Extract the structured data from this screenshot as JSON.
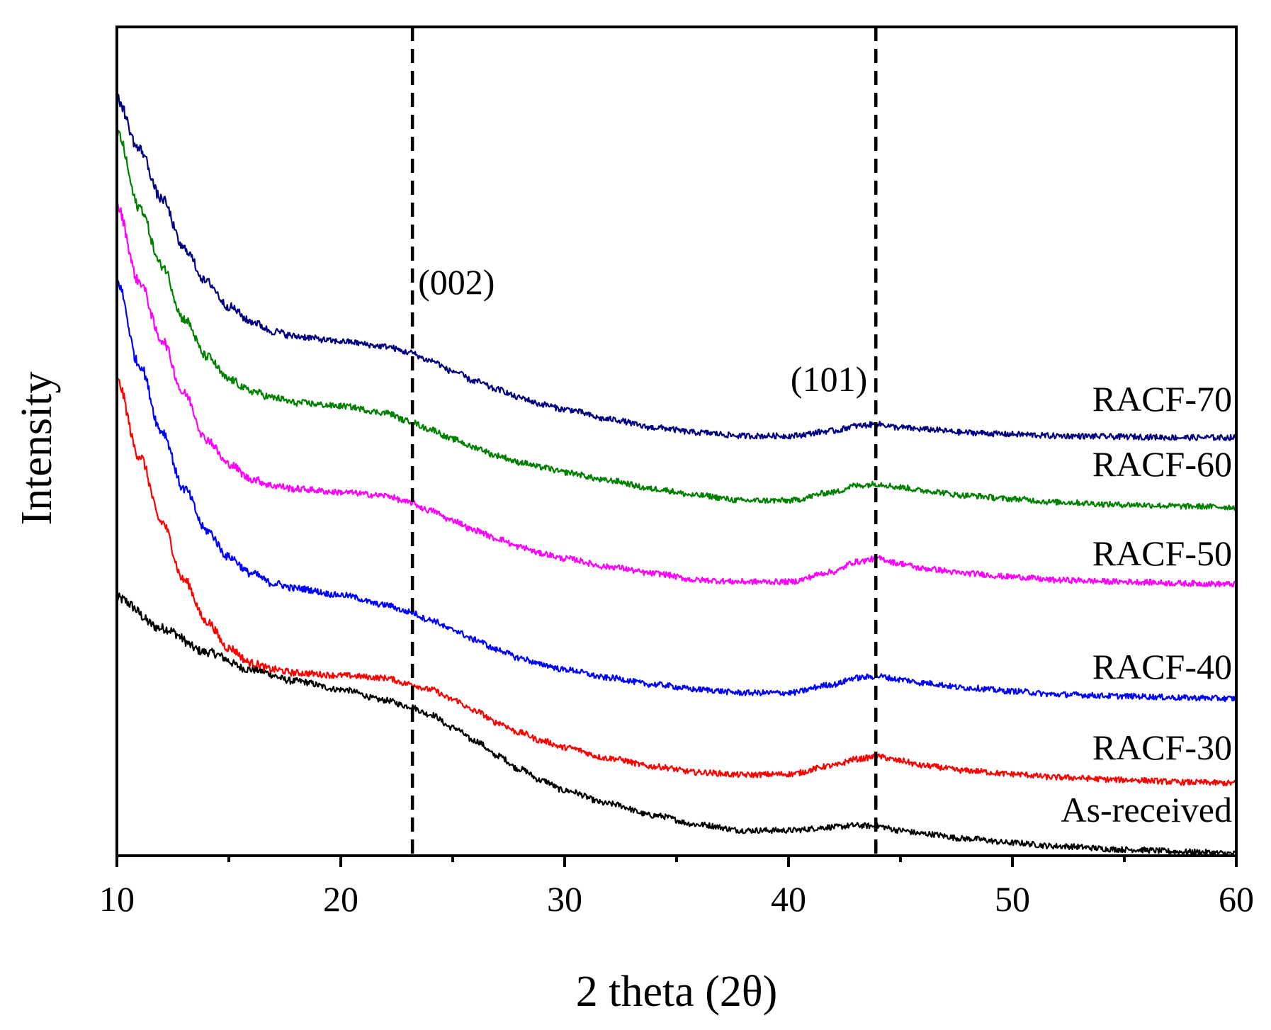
{
  "chart_data": {
    "type": "line",
    "title": "",
    "xlabel": "2 theta (2θ)",
    "ylabel": "Intensity",
    "xlim": [
      10,
      60
    ],
    "ylim": [
      0,
      10
    ],
    "x_ticks": [
      10,
      20,
      30,
      40,
      50,
      60
    ],
    "x_minor_step": 5,
    "y_ticks_shown": false,
    "grid": false,
    "legend": "inline labels at right end of each curve",
    "annotations": [
      {
        "text": "(002)",
        "x": 23.2,
        "line": "dashed vertical"
      },
      {
        "text": "(101)",
        "x": 43.9,
        "line": "dashed vertical"
      }
    ],
    "series": [
      {
        "name": "As-received",
        "color": "#000000",
        "x": [
          10,
          12,
          14,
          16,
          18,
          20,
          22,
          23,
          24,
          25,
          26,
          27,
          28,
          29,
          30,
          32,
          34,
          36,
          38,
          40,
          42,
          43,
          44,
          45,
          46,
          48,
          50,
          52,
          55,
          58,
          60
        ],
        "values": [
          3.08,
          2.72,
          2.43,
          2.22,
          2.08,
          1.98,
          1.85,
          1.78,
          1.68,
          1.52,
          1.36,
          1.18,
          1.02,
          0.88,
          0.76,
          0.6,
          0.46,
          0.35,
          0.28,
          0.28,
          0.32,
          0.34,
          0.33,
          0.28,
          0.24,
          0.18,
          0.13,
          0.09,
          0.05,
          0.02,
          0.0
        ]
      },
      {
        "name": "RACF-30",
        "color": "#ff0000",
        "x": [
          10,
          11,
          12,
          13,
          14,
          15,
          16,
          17,
          18,
          20,
          22,
          23,
          24,
          25,
          26,
          27,
          28,
          29,
          30,
          32,
          34,
          36,
          38,
          40,
          42,
          43,
          44,
          45,
          46,
          48,
          50,
          52,
          55,
          58,
          60
        ],
        "values": [
          5.7,
          4.8,
          4.0,
          3.3,
          2.8,
          2.48,
          2.3,
          2.22,
          2.18,
          2.15,
          2.12,
          2.05,
          1.98,
          1.86,
          1.72,
          1.58,
          1.46,
          1.36,
          1.28,
          1.15,
          1.05,
          0.98,
          0.95,
          0.96,
          1.06,
          1.14,
          1.17,
          1.12,
          1.06,
          1.0,
          0.96,
          0.92,
          0.89,
          0.86,
          0.85
        ]
      },
      {
        "name": "RACF-40",
        "color": "#0000ff",
        "x": [
          10,
          11,
          12,
          13,
          14,
          15,
          16,
          17,
          18,
          20,
          22,
          23,
          24,
          25,
          26,
          27,
          28,
          29,
          30,
          32,
          34,
          36,
          38,
          40,
          42,
          43,
          44,
          45,
          46,
          48,
          50,
          52,
          55,
          58,
          60
        ],
        "values": [
          6.9,
          5.9,
          5.1,
          4.4,
          3.9,
          3.58,
          3.38,
          3.26,
          3.2,
          3.12,
          3.0,
          2.92,
          2.82,
          2.7,
          2.58,
          2.46,
          2.36,
          2.28,
          2.22,
          2.12,
          2.04,
          1.98,
          1.94,
          1.94,
          2.04,
          2.12,
          2.14,
          2.1,
          2.06,
          2.0,
          1.96,
          1.92,
          1.9,
          1.88,
          1.87
        ]
      },
      {
        "name": "RACF-50",
        "color": "#ff00ff",
        "x": [
          10,
          11,
          12,
          13,
          14,
          15,
          16,
          17,
          18,
          20,
          22,
          23,
          24,
          25,
          26,
          27,
          28,
          29,
          30,
          32,
          34,
          36,
          38,
          40,
          42,
          43,
          44,
          45,
          46,
          48,
          50,
          52,
          55,
          58,
          60
        ],
        "values": [
          7.8,
          6.9,
          6.2,
          5.55,
          5.0,
          4.7,
          4.52,
          4.44,
          4.4,
          4.36,
          4.32,
          4.24,
          4.14,
          4.02,
          3.9,
          3.8,
          3.7,
          3.62,
          3.56,
          3.46,
          3.38,
          3.3,
          3.28,
          3.28,
          3.4,
          3.52,
          3.56,
          3.5,
          3.44,
          3.38,
          3.34,
          3.3,
          3.28,
          3.26,
          3.25
        ]
      },
      {
        "name": "RACF-60",
        "color": "#008000",
        "x": [
          10,
          11,
          12,
          13,
          14,
          15,
          16,
          17,
          18,
          20,
          22,
          23,
          24,
          25,
          26,
          27,
          28,
          29,
          30,
          32,
          34,
          36,
          38,
          40,
          42,
          43,
          44,
          45,
          46,
          48,
          50,
          52,
          55,
          58,
          60
        ],
        "values": [
          8.7,
          7.8,
          7.1,
          6.45,
          6.0,
          5.72,
          5.58,
          5.5,
          5.44,
          5.4,
          5.32,
          5.22,
          5.12,
          5.0,
          4.9,
          4.8,
          4.72,
          4.66,
          4.6,
          4.5,
          4.4,
          4.32,
          4.26,
          4.26,
          4.36,
          4.44,
          4.46,
          4.42,
          4.38,
          4.32,
          4.28,
          4.24,
          4.21,
          4.19,
          4.18
        ]
      },
      {
        "name": "RACF-70",
        "color": "#000080",
        "x": [
          10,
          11,
          12,
          13,
          14,
          15,
          16,
          17,
          18,
          20,
          22,
          23,
          24,
          25,
          26,
          27,
          28,
          29,
          30,
          32,
          34,
          36,
          38,
          40,
          42,
          43,
          44,
          45,
          46,
          48,
          50,
          52,
          55,
          58,
          60
        ],
        "values": [
          9.1,
          8.5,
          7.9,
          7.3,
          6.9,
          6.6,
          6.42,
          6.3,
          6.24,
          6.18,
          6.12,
          6.05,
          5.95,
          5.82,
          5.7,
          5.6,
          5.5,
          5.42,
          5.36,
          5.24,
          5.14,
          5.08,
          5.04,
          5.04,
          5.1,
          5.16,
          5.18,
          5.14,
          5.12,
          5.08,
          5.06,
          5.04,
          5.03,
          5.02,
          5.02
        ]
      }
    ]
  }
}
